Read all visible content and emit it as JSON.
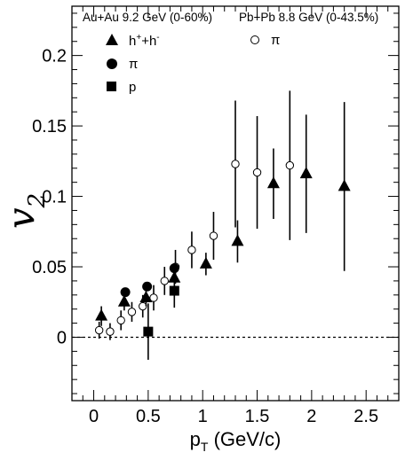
{
  "chart_data": {
    "type": "scatter",
    "xlabel": {
      "main": "p",
      "sub": "T",
      "unit": " (GeV/c)"
    },
    "ylabel": {
      "main": "v",
      "sub": "2"
    },
    "xlim": [
      -0.2,
      2.8
    ],
    "ylim": [
      -0.045,
      0.235
    ],
    "x_ticks": [
      "0",
      "0.5",
      "1",
      "1.5",
      "2",
      "2.5"
    ],
    "x_tick_values": [
      0,
      0.5,
      1,
      1.5,
      2,
      2.5
    ],
    "y_ticks": [
      "0",
      "0.05",
      "0.1",
      "0.15",
      "0.2"
    ],
    "y_tick_values": [
      0,
      0.05,
      0.1,
      0.15,
      0.2
    ],
    "reference_line_y": 0,
    "legend_groups": [
      {
        "title": "Au+Au 9.2 GeV (0-60%)",
        "entries": [
          "h+h-",
          "π",
          "p"
        ]
      },
      {
        "title": "Pb+Pb 8.8 GeV (0-43.5%)",
        "entries": [
          "π"
        ]
      }
    ],
    "legend_label_parts": {
      "h": "h",
      "plus": "+",
      "minus": "-"
    },
    "series": [
      {
        "name": "h+h-",
        "group": "Au+Au 9.2 GeV (0-60%)",
        "marker": "triangle",
        "x": [
          0.07,
          0.28,
          0.48,
          0.74,
          1.03,
          1.32,
          1.65,
          1.95,
          2.3
        ],
        "y": [
          0.015,
          0.025,
          0.028,
          0.042,
          0.052,
          0.068,
          0.109,
          0.116,
          0.107
        ],
        "err": [
          0.007,
          0.006,
          0.006,
          0.007,
          0.008,
          0.015,
          0.025,
          0.042,
          0.06
        ]
      },
      {
        "name": "π",
        "group": "Au+Au 9.2 GeV (0-60%)",
        "marker": "circle",
        "x": [
          0.29,
          0.49,
          0.74
        ],
        "y": [
          0.032,
          0.036,
          0.049
        ],
        "err": [
          0.0,
          0.0,
          0.0
        ]
      },
      {
        "name": "p",
        "group": "Au+Au 9.2 GeV (0-60%)",
        "marker": "square",
        "x": [
          0.5,
          0.74
        ],
        "y": [
          0.004,
          0.033
        ],
        "err": [
          0.02,
          0.012
        ]
      },
      {
        "name": "π",
        "group": "Pb+Pb 8.8 GeV (0-43.5%)",
        "marker": "open-circle",
        "x": [
          0.05,
          0.15,
          0.25,
          0.35,
          0.45,
          0.55,
          0.65,
          0.75,
          0.9,
          1.1,
          1.3,
          1.5,
          1.8
        ],
        "y": [
          0.005,
          0.004,
          0.012,
          0.018,
          0.022,
          0.028,
          0.04,
          0.05,
          0.062,
          0.072,
          0.123,
          0.117,
          0.122
        ],
        "err": [
          0.006,
          0.006,
          0.007,
          0.007,
          0.008,
          0.009,
          0.01,
          0.012,
          0.013,
          0.017,
          0.045,
          0.04,
          0.053
        ]
      }
    ],
    "colors": {
      "marker": "#000000",
      "axis": "#000000",
      "background": "#ffffff"
    }
  }
}
